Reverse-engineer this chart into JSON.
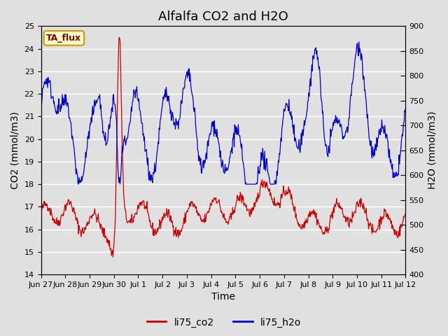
{
  "title": "Alfalfa CO2 and H2O",
  "xlabel": "Time",
  "ylabel_left": "CO2 (mmol/m3)",
  "ylabel_right": "H2O (mmol/m3)",
  "annotation": "TA_flux",
  "ylim_left": [
    14.0,
    25.0
  ],
  "ylim_right": [
    400,
    900
  ],
  "left_yticks": [
    14.0,
    15.0,
    16.0,
    17.0,
    18.0,
    19.0,
    20.0,
    21.0,
    22.0,
    23.0,
    24.0,
    25.0
  ],
  "right_yticks": [
    400,
    450,
    500,
    550,
    600,
    650,
    700,
    750,
    800,
    850,
    900
  ],
  "xtick_positions": [
    0,
    1,
    2,
    3,
    4,
    5,
    6,
    7,
    8,
    9,
    10,
    11,
    12,
    13,
    14,
    15
  ],
  "xtick_labels": [
    "Jun 27",
    "Jun 28",
    "Jun 29",
    "Jun 30",
    "Jul 1",
    "Jul 2",
    "Jul 3",
    "Jul 4",
    "Jul 5",
    "Jul 6",
    "Jul 7",
    "Jul 8",
    "Jul 9",
    "Jul 10",
    "Jul 11",
    "Jul 12"
  ],
  "co2_color": "#cc0000",
  "h2o_color": "#0000cc",
  "legend_co2": "li75_co2",
  "legend_h2o": "li75_h2o",
  "background_color": "#e0e0e0",
  "annotation_bg": "#ffffcc",
  "annotation_border": "#cc9900",
  "annotation_text_color": "#8b0000",
  "title_fontsize": 13,
  "label_fontsize": 10,
  "tick_fontsize": 8
}
